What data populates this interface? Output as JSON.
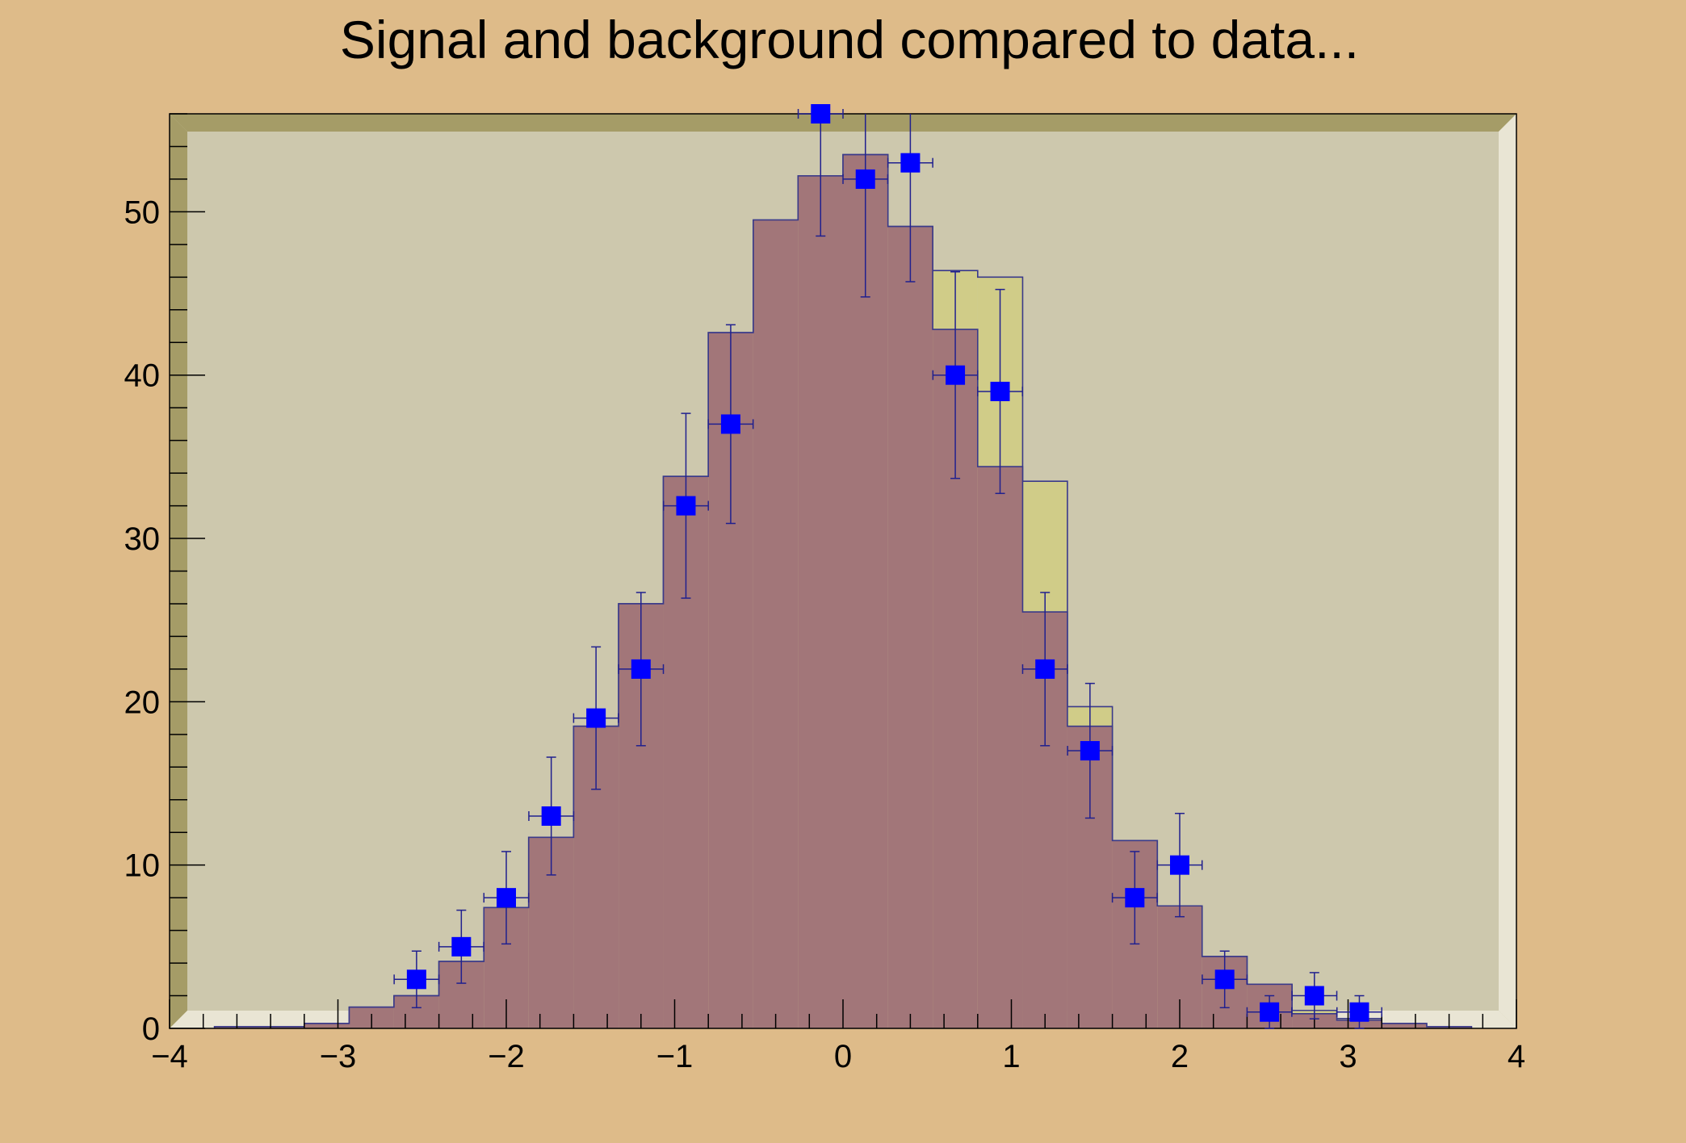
{
  "chart_data": {
    "type": "bar",
    "title": "Signal and background compared to data...",
    "xlabel": "",
    "ylabel": "",
    "xlim": [
      -4,
      4
    ],
    "ylim": [
      0,
      56
    ],
    "x_ticks": [
      -4,
      -3,
      -2,
      -1,
      0,
      1,
      2,
      3,
      4
    ],
    "x_tick_labels": [
      "−4",
      "−3",
      "−2",
      "−1",
      "0",
      "1",
      "2",
      "3",
      "4"
    ],
    "y_ticks": [
      0,
      10,
      20,
      30,
      40,
      50
    ],
    "y_tick_labels": [
      "0",
      "10",
      "20",
      "30",
      "40",
      "50"
    ],
    "bin_edges": [
      -3.733,
      -3.467,
      -3.2,
      -2.933,
      -2.667,
      -2.4,
      -2.133,
      -1.867,
      -1.6,
      -1.333,
      -1.067,
      -0.8,
      -0.533,
      -0.267,
      0.0,
      0.267,
      0.533,
      0.8,
      1.067,
      1.333,
      1.6,
      1.867,
      2.133,
      2.4,
      2.667,
      2.933,
      3.2,
      3.467,
      3.733
    ],
    "series": [
      {
        "kind": "stacked-total",
        "values": [
          0.1,
          0.1,
          0.3,
          1.3,
          2.0,
          4.1,
          7.4,
          11.7,
          18.5,
          26.0,
          33.8,
          42.6,
          49.5,
          52.2,
          53.5,
          49.1,
          46.4,
          46.0,
          33.5,
          19.7,
          11.5,
          7.5,
          4.4,
          2.7,
          1.1,
          0.6,
          0.3,
          0.1
        ],
        "color": "#d0cc88"
      },
      {
        "kind": "background",
        "values": [
          0.1,
          0.1,
          0.3,
          1.3,
          2.0,
          4.1,
          7.4,
          11.7,
          18.5,
          26.0,
          33.8,
          42.6,
          49.5,
          52.2,
          53.5,
          49.1,
          42.8,
          34.4,
          25.5,
          18.5,
          11.5,
          7.5,
          4.4,
          2.7,
          0.9,
          0.5,
          0.3,
          0.1
        ],
        "color": "#a27679"
      }
    ],
    "data_points": {
      "x": [
        -2.533,
        -2.267,
        -2.0,
        -1.733,
        -1.467,
        -1.2,
        -0.933,
        -0.667,
        -0.133,
        0.133,
        0.4,
        0.667,
        0.933,
        1.2,
        1.467,
        1.733,
        2.0,
        2.267,
        2.533,
        2.8,
        3.067
      ],
      "y": [
        3,
        5,
        8,
        13,
        19,
        22,
        32,
        37,
        56,
        52,
        53,
        40,
        39,
        22,
        17,
        8,
        10,
        3,
        1,
        2,
        1
      ],
      "x_err": 0.133,
      "marker_color": "#0000ff",
      "errorbar_color": "#20208f"
    },
    "colors": {
      "canvas": "#debb89",
      "frame_fill": "#cdc8ad",
      "frame_top": "#a59c67",
      "frame_bottom": "#e9e5d4",
      "outline": "#3a3a8a"
    }
  }
}
